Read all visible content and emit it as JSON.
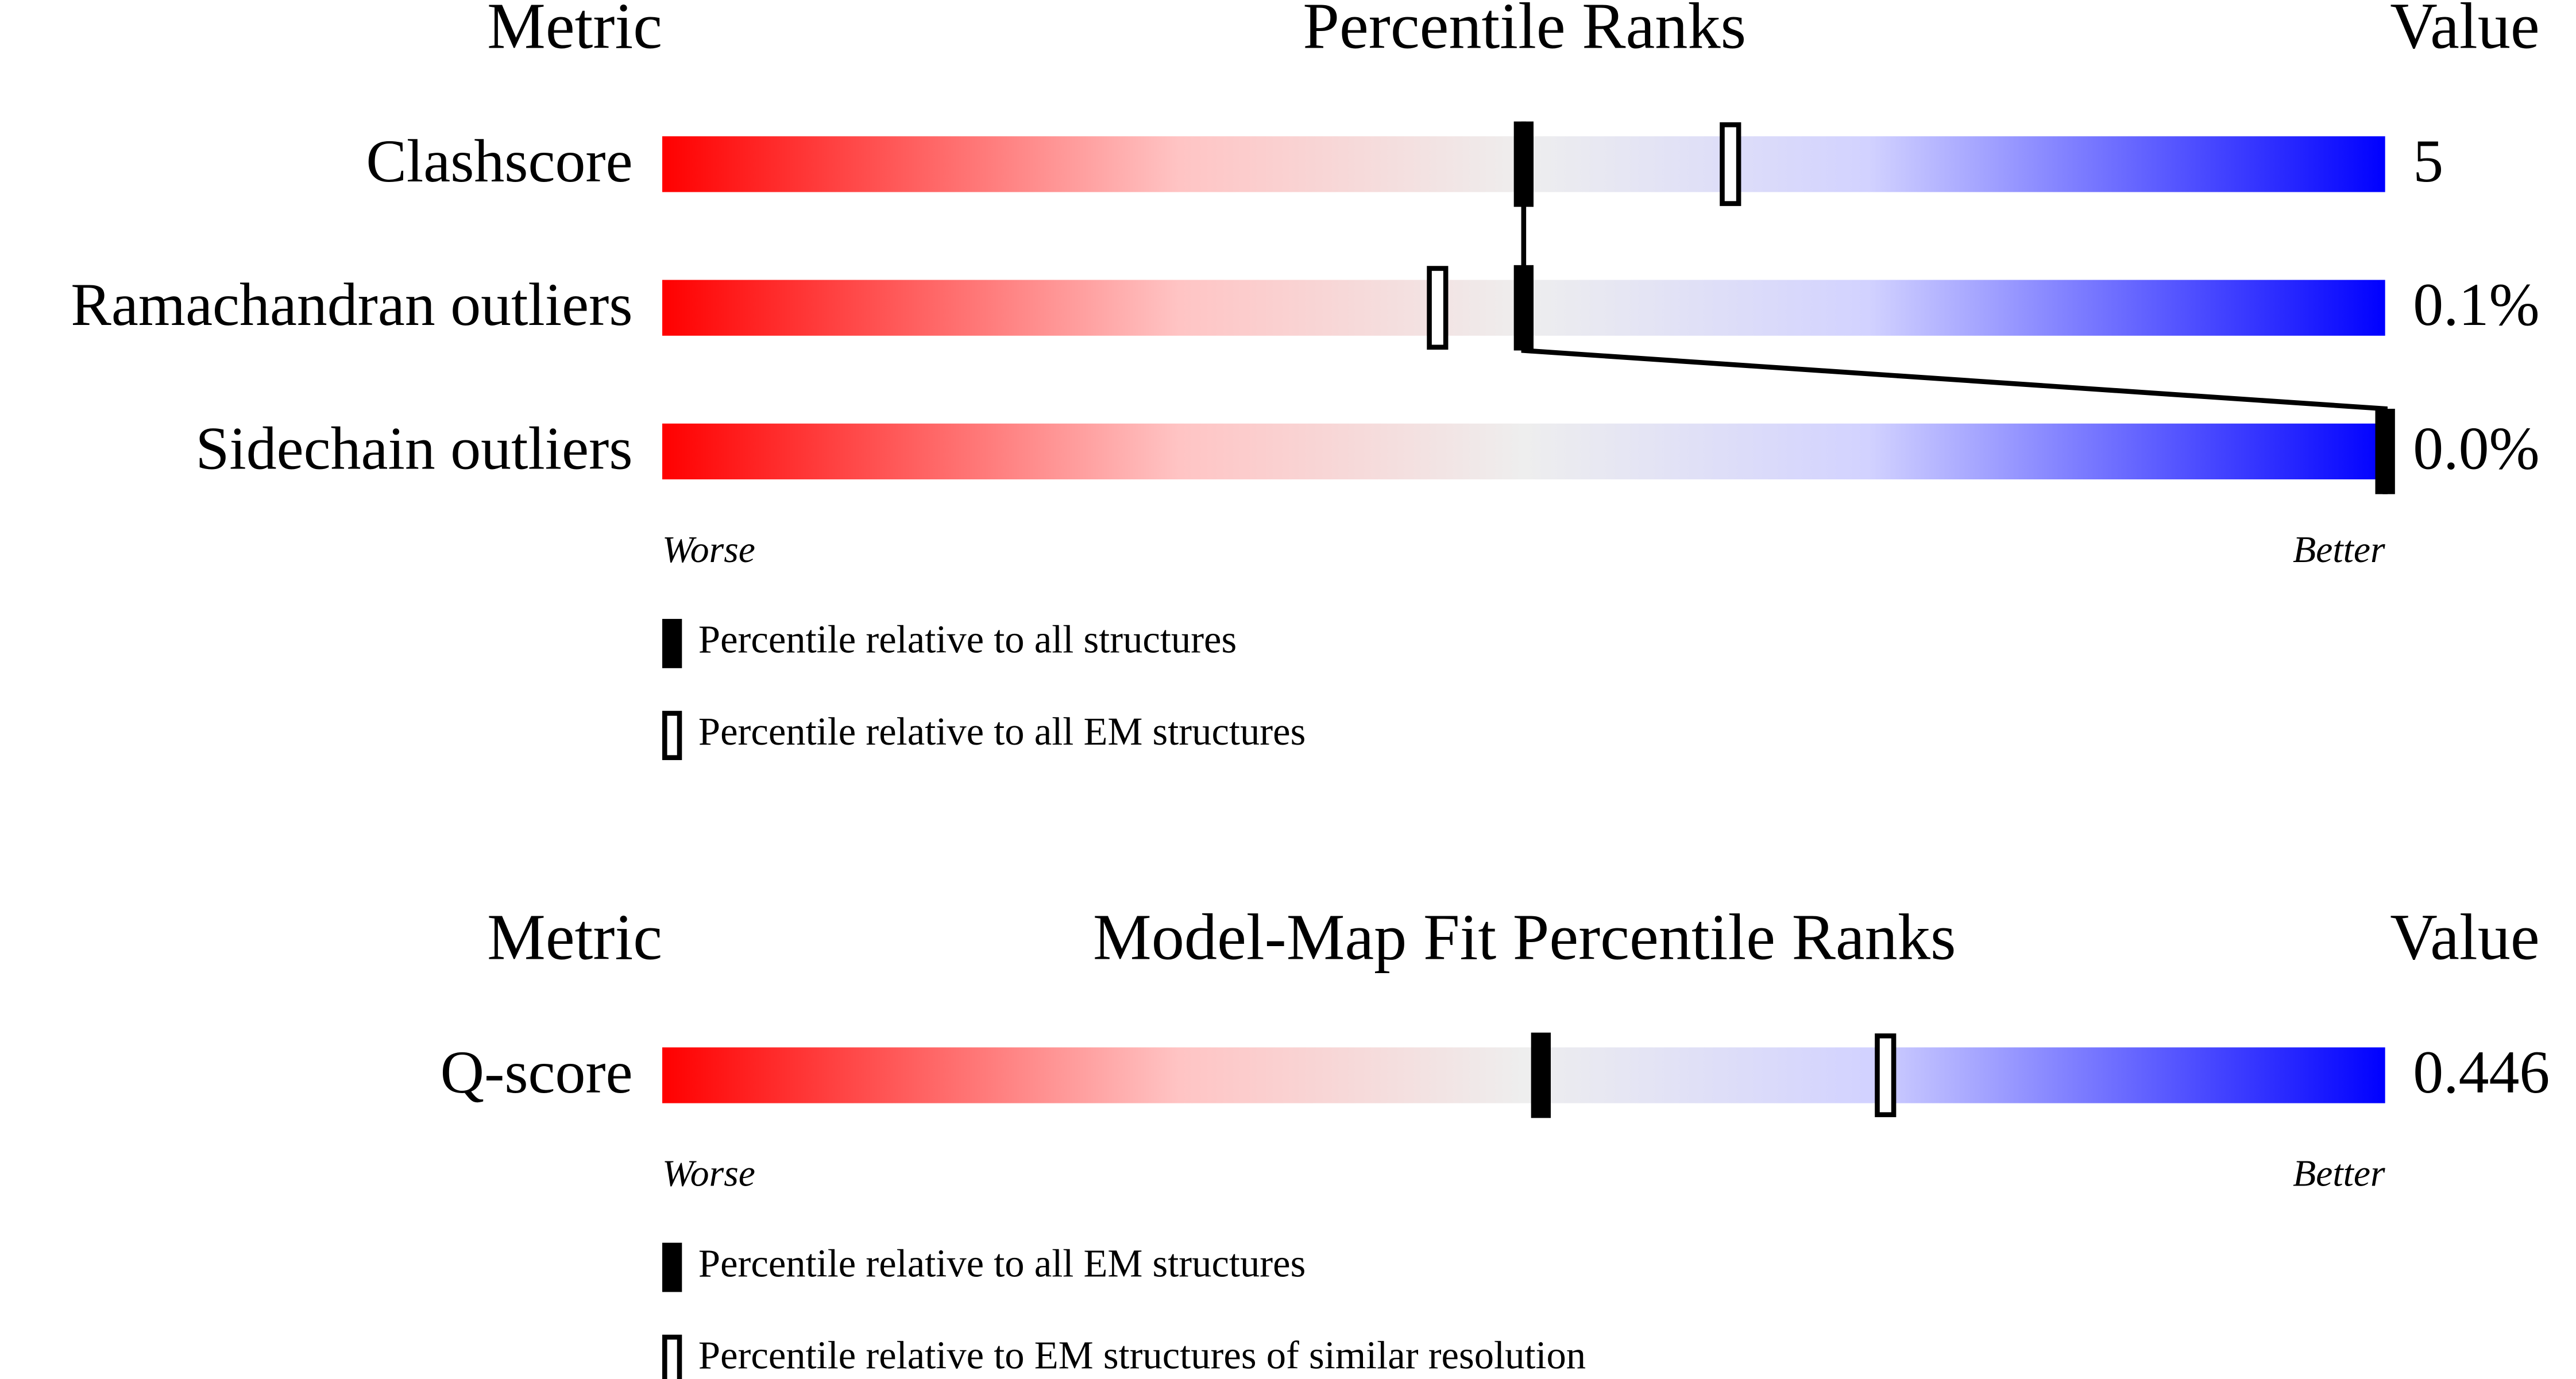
{
  "chart_data": [
    {
      "type": "percentile",
      "metric_header": "Metric",
      "title": "Percentile Ranks",
      "value_header": "Value",
      "xlim": [
        0,
        100
      ],
      "categories": [
        "Clashscore",
        "Ramachandran outliers",
        "Sidechain outliers"
      ],
      "metric_values": [
        "5",
        "0.1%",
        "0.0%"
      ],
      "worse_label": "Worse",
      "better_label": "Better",
      "series": [
        {
          "name": "Percentile relative to all structures",
          "style": "filled",
          "color": "#000000",
          "values": [
            50,
            50,
            100
          ]
        },
        {
          "name": "Percentile relative to all EM structures",
          "style": "open",
          "color": "#000000",
          "values": [
            62,
            45,
            null
          ]
        }
      ]
    },
    {
      "type": "percentile",
      "metric_header": "Metric",
      "title": "Model-Map Fit Percentile Ranks",
      "value_header": "Value",
      "xlim": [
        0,
        100
      ],
      "categories": [
        "Q-score"
      ],
      "metric_values": [
        "0.446"
      ],
      "worse_label": "Worse",
      "better_label": "Better",
      "series": [
        {
          "name": "Percentile relative to all EM structures",
          "style": "filled",
          "color": "#000000",
          "values": [
            51
          ]
        },
        {
          "name": "Percentile relative to EM structures of similar resolution",
          "style": "open",
          "color": "#000000",
          "values": [
            71
          ]
        }
      ]
    }
  ]
}
